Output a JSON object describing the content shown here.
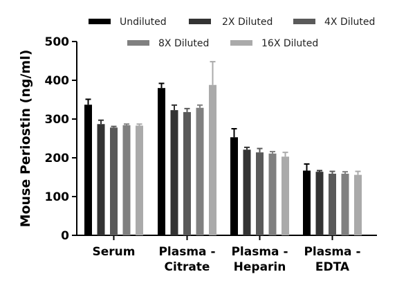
{
  "chart_data": {
    "type": "bar",
    "title": "",
    "xlabel": "",
    "ylabel": "Mouse Periostin (ng/ml)",
    "ylim": [
      0,
      500
    ],
    "yticks": [
      0,
      100,
      200,
      300,
      400,
      500
    ],
    "grid": false,
    "legend_position": "top",
    "categories": [
      [
        "Serum"
      ],
      [
        "Plasma -",
        "Citrate"
      ],
      [
        "Plasma -",
        "Heparin"
      ],
      [
        "Plasma -",
        "EDTA"
      ]
    ],
    "series": [
      {
        "name": "Undiluted",
        "color": "#000000",
        "values": [
          337,
          380,
          253,
          167
        ],
        "errors": [
          14,
          12,
          22,
          17
        ]
      },
      {
        "name": "2X Diluted",
        "color": "#333333",
        "values": [
          287,
          323,
          221,
          164
        ],
        "errors": [
          10,
          13,
          6,
          3
        ]
      },
      {
        "name": "4X Diluted",
        "color": "#5a5a5a",
        "values": [
          278,
          318,
          214,
          159
        ],
        "errors": [
          3,
          9,
          10,
          6
        ]
      },
      {
        "name": "8X Diluted",
        "color": "#808080",
        "values": [
          284,
          329,
          211,
          159
        ],
        "errors": [
          3,
          7,
          5,
          5
        ]
      },
      {
        "name": "16X Diluted",
        "color": "#aaaaaa",
        "values": [
          283,
          388,
          203,
          156
        ],
        "errors": [
          4,
          60,
          11,
          9
        ]
      }
    ]
  }
}
